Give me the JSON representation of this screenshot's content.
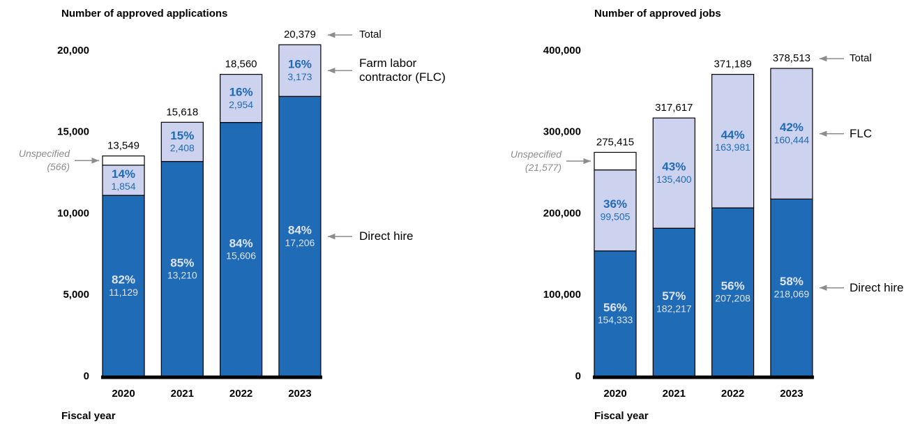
{
  "chart_data": [
    {
      "type": "stacked-bar",
      "title": "Number of approved applications",
      "x_label": "Fiscal year",
      "categories": [
        "2020",
        "2021",
        "2022",
        "2023"
      ],
      "ylim": [
        0,
        21000
      ],
      "yticks": [
        0,
        {
          "value": 5000,
          "label": "5,000"
        },
        {
          "value": 10000,
          "label": "10,000"
        },
        {
          "value": 15000,
          "label": "15,000"
        },
        {
          "value": 20000,
          "label": "20,000"
        }
      ],
      "series": [
        {
          "name": "Direct hire",
          "color": "#1f6bb5",
          "values": [
            11129,
            13210,
            15606,
            17206
          ],
          "value_labels": [
            "11,129",
            "13,210",
            "15,606",
            "17,206"
          ],
          "percents": [
            "82%",
            "85%",
            "84%",
            "84%"
          ]
        },
        {
          "name": "Farm labor contractor (FLC)",
          "color": "#cdd3ee",
          "values": [
            1854,
            2408,
            2954,
            3173
          ],
          "value_labels": [
            "1,854",
            "2,408",
            "2,954",
            "3,173"
          ],
          "percents": [
            "14%",
            "15%",
            "16%",
            "16%"
          ]
        },
        {
          "name": "Unspecified",
          "color": "#ffffff",
          "values": [
            566,
            null,
            null,
            null
          ],
          "value_labels": [
            "(566)",
            null,
            null,
            null
          ]
        }
      ],
      "total_name": "Total",
      "totals": [
        13549,
        15618,
        18560,
        20379
      ],
      "total_labels": [
        "13,549",
        "15,618",
        "18,560",
        "20,379"
      ]
    },
    {
      "type": "stacked-bar",
      "title": "Number of approved jobs",
      "x_label": "Fiscal year",
      "categories": [
        "2020",
        "2021",
        "2022",
        "2023"
      ],
      "ylim": [
        0,
        420000
      ],
      "yticks": [
        0,
        {
          "value": 100000,
          "label": "100,000"
        },
        {
          "value": 200000,
          "label": "200,000"
        },
        {
          "value": 300000,
          "label": "300,000"
        },
        {
          "value": 400000,
          "label": "400,000"
        }
      ],
      "series": [
        {
          "name": "Direct hire",
          "color": "#1f6bb5",
          "values": [
            154333,
            182217,
            207208,
            218069
          ],
          "value_labels": [
            "154,333",
            "182,217",
            "207,208",
            "218,069"
          ],
          "percents": [
            "56%",
            "57%",
            "56%",
            "58%"
          ]
        },
        {
          "name": "FLC",
          "color": "#cdd3ee",
          "values": [
            99505,
            135400,
            163981,
            160444
          ],
          "value_labels": [
            "99,505",
            "135,400",
            "163,981",
            "160,444"
          ],
          "percents": [
            "36%",
            "43%",
            "44%",
            "42%"
          ]
        },
        {
          "name": "Unspecified",
          "color": "#ffffff",
          "values": [
            21577,
            null,
            null,
            null
          ],
          "value_labels": [
            "(21,577)",
            null,
            null,
            null
          ]
        }
      ],
      "total_name": "Total",
      "totals": [
        275415,
        317617,
        371189,
        378513
      ],
      "total_labels": [
        "275,415",
        "317,617",
        "371,189",
        "378,513"
      ]
    }
  ]
}
